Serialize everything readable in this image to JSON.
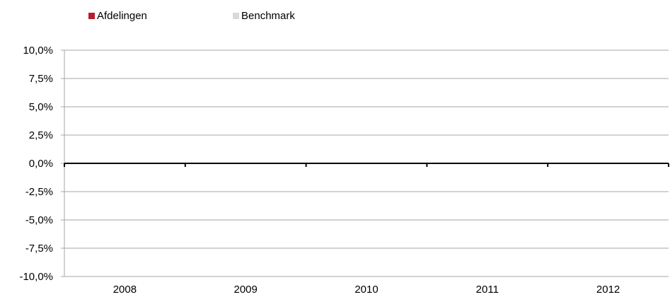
{
  "chart_data": {
    "type": "bar",
    "title": "",
    "xlabel": "",
    "ylabel": "",
    "categories": [
      "2008",
      "2009",
      "2010",
      "2011",
      "2012"
    ],
    "series": [
      {
        "name": "Afdelingen",
        "color": "#b41f2b",
        "values": [
          0,
          0,
          0,
          0,
          0
        ]
      },
      {
        "name": "Benchmark",
        "color": "#d9d9d9",
        "values": [
          0,
          0,
          0,
          0,
          0
        ]
      }
    ],
    "ylim": [
      -10,
      10
    ],
    "yticks": [
      10,
      7.5,
      5,
      2.5,
      0,
      -2.5,
      -5,
      -7.5,
      -10
    ],
    "ytick_labels": [
      "10,0%",
      "7,5%",
      "5,0%",
      "2,5%",
      "0,0%",
      "-2,5%",
      "-5,0%",
      "-7,5%",
      "-10,0%"
    ],
    "grid": true,
    "legend_position": "top-left",
    "gridline_color": "#a6a6a6",
    "axis_color": "#000000"
  }
}
